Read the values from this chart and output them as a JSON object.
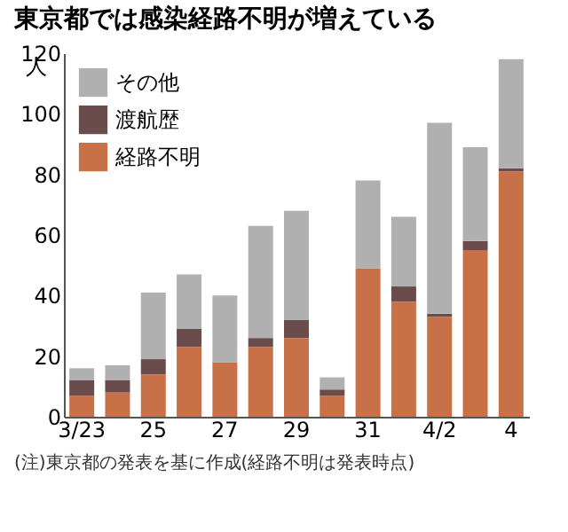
{
  "chart_data": {
    "type": "bar",
    "title": "東京都では感染経路不明が増えている",
    "ylabel": "人",
    "categories": [
      "3/23",
      null,
      "25",
      null,
      "27",
      null,
      "29",
      null,
      "31",
      null,
      "4/2",
      null,
      "4"
    ],
    "stacked": true,
    "series": [
      {
        "name": "経路不明",
        "color": "#c87048",
        "values": [
          7,
          8,
          14,
          23,
          18,
          23,
          26,
          7,
          49,
          38,
          33,
          55,
          81
        ]
      },
      {
        "name": "渡航歴",
        "color": "#6b4c4c",
        "values": [
          5,
          4,
          5,
          6,
          0,
          3,
          6,
          2,
          0,
          5,
          1,
          3,
          1
        ]
      },
      {
        "name": "その他",
        "color": "#b0b0b0",
        "values": [
          4,
          5,
          22,
          18,
          22,
          37,
          36,
          4,
          29,
          23,
          63,
          31,
          36
        ]
      }
    ],
    "ylim": [
      0,
      120
    ],
    "yticks": [
      0,
      20,
      40,
      60,
      80,
      100,
      120
    ],
    "grid": false,
    "legend": "top left",
    "annotations": [
      "(注)東京都の発表を基に作成(経路不明は発表時点)"
    ]
  }
}
